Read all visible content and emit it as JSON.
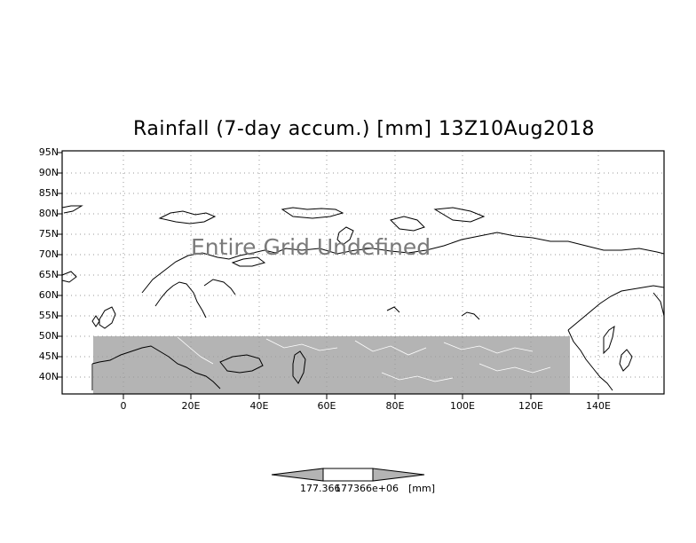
{
  "map": {
    "title": "Rainfall (7-day accum.) [mm] 13Z10Aug2018",
    "message": "Entire Grid Undefined",
    "lat_labels": [
      "95N",
      "90N",
      "85N",
      "80N",
      "75N",
      "70N",
      "65N",
      "60N",
      "55N",
      "50N",
      "45N",
      "40N"
    ],
    "lon_labels": [
      "0",
      "20E",
      "40E",
      "60E",
      "80E",
      "100E",
      "120E",
      "140E"
    ],
    "masked_region_color": "#b4b4b4",
    "masked_region_lat_range": [
      "35N",
      "50N"
    ]
  },
  "colorbar": {
    "label_left": "177.366",
    "label_right": "177366e+06",
    "unit": "[mm]",
    "colors": [
      "#b4b4b4",
      "#ffffff",
      "#b4b4b4"
    ]
  }
}
